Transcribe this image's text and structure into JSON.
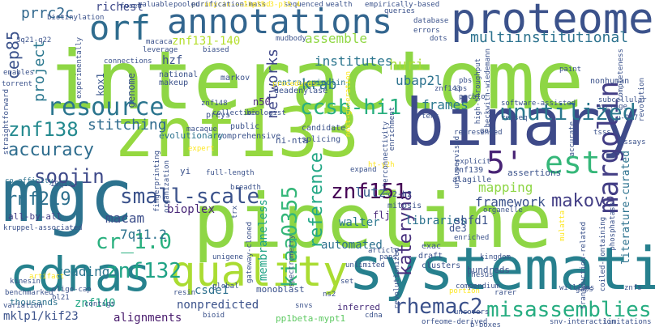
{
  "words": [
    {
      "text": "interactome",
      "color": "#8ed645"
    },
    {
      "text": "pipeline",
      "color": "#8ed645"
    },
    {
      "text": "znf133",
      "color": "#95d840"
    },
    {
      "text": "binary",
      "color": "#3e4a89"
    },
    {
      "text": "mgc",
      "color": "#2c728e"
    },
    {
      "text": "systematic",
      "color": "#27808e"
    },
    {
      "text": "cdnas",
      "color": "#26828e"
    },
    {
      "text": "proteome",
      "color": "#3b528b"
    },
    {
      "text": "annotations",
      "color": "#32658e"
    },
    {
      "text": "quality",
      "color": "#aadc32"
    },
    {
      "text": "resource",
      "color": "#2b758e"
    },
    {
      "text": "orf",
      "color": "#2f6c8e"
    },
    {
      "text": "5'",
      "color": "#482475"
    },
    {
      "text": "est",
      "color": "#35b779"
    },
    {
      "text": "margolin",
      "color": "#433e85"
    },
    {
      "text": "small-scale",
      "color": "#3b528b"
    },
    {
      "text": "unutilized",
      "color": "#2a788e"
    },
    {
      "text": "accuracy",
      "color": "#2e6d8e"
    },
    {
      "text": "znf138",
      "color": "#23898e"
    },
    {
      "text": "ccsb-hi1",
      "color": "#29af7f"
    },
    {
      "text": "znf151",
      "color": "#440154"
    },
    {
      "text": "soojin",
      "color": "#3e4989"
    },
    {
      "text": "rnf219",
      "color": "#2d708e"
    },
    {
      "text": "rhemac2",
      "color": "#3b518b"
    },
    {
      "text": "misassemblies",
      "color": "#27ad81"
    },
    {
      "text": "cr_1.0",
      "color": "#2ab07f"
    },
    {
      "text": "znf132",
      "color": "#20a386"
    },
    {
      "text": "kiaa0355",
      "color": "#35b779"
    },
    {
      "text": "reference",
      "color": "#22a785"
    },
    {
      "text": "kateryna",
      "color": "#472f7d"
    },
    {
      "text": "makova",
      "color": "#433e85"
    },
    {
      "text": "multiinstitutional",
      "color": "#2c728e"
    },
    {
      "text": "project",
      "color": "#2a778e"
    },
    {
      "text": "cep85",
      "color": "#3b528b"
    },
    {
      "text": "prrc2c",
      "color": "#31688e"
    },
    {
      "text": "krab",
      "color": "#2c738e"
    },
    {
      "text": "huri",
      "color": "#a5db36"
    },
    {
      "text": "ubap2l",
      "color": "#2c728e"
    },
    {
      "text": "networks",
      "color": "#3f4788"
    },
    {
      "text": "stitching",
      "color": "#2f6b8e"
    },
    {
      "text": "frames",
      "color": "#2a788e"
    },
    {
      "text": "assemble",
      "color": "#90d743"
    },
    {
      "text": "institutes",
      "color": "#2b758e"
    },
    {
      "text": "lutz",
      "color": "#365c8d"
    },
    {
      "text": "framework",
      "color": "#3b528b"
    },
    {
      "text": "mapping",
      "color": "#8ed645"
    },
    {
      "text": "macam",
      "color": "#3d4e8a"
    },
    {
      "text": "7q11.2",
      "color": "#2c728e"
    },
    {
      "text": "bioplex",
      "color": "#482677"
    },
    {
      "text": "reading",
      "color": "#2b758e"
    },
    {
      "text": "alignments",
      "color": "#481a6c"
    },
    {
      "text": "nonpredicted",
      "color": "#3b528b"
    },
    {
      "text": "csde1",
      "color": "#2d708e"
    },
    {
      "text": "walter",
      "color": "#2a778e"
    },
    {
      "text": "libraries",
      "color": "#2c728e"
    },
    {
      "text": "shfd1",
      "color": "#3b528b"
    },
    {
      "text": "automated",
      "color": "#2d708e"
    },
    {
      "text": "membraneless",
      "color": "#20a386"
    },
    {
      "text": "mklp1/kif23",
      "color": "#3b528b"
    },
    {
      "text": "znf140",
      "color": "#22a785"
    },
    {
      "text": "znf131-140",
      "color": "#b5de2b"
    },
    {
      "text": "richest",
      "color": "#3e4989"
    },
    {
      "text": "hzf",
      "color": "#3b528b"
    },
    {
      "text": "kox1",
      "color": "#39568c"
    },
    {
      "text": "genome",
      "color": "#3b528b"
    },
    {
      "text": "n50",
      "color": "#482878"
    },
    {
      "text": "flj",
      "color": "#482878"
    },
    {
      "text": "de3",
      "color": "#3b528b"
    },
    {
      "text": "ni-nta",
      "color": "#3b528b"
    },
    {
      "text": "evolutionary",
      "color": "#2c728e"
    },
    {
      "text": "monoblast",
      "color": "#3b528b"
    },
    {
      "text": "pp1beta-mypt1",
      "color": "#5ec962"
    },
    {
      "text": "inferred",
      "color": "#472c7a"
    },
    {
      "text": "literature-curated",
      "color": "#2c728e"
    },
    {
      "text": "all-by-all",
      "color": "#433e85"
    },
    {
      "text": "centralspindlin",
      "color": "#2c728e"
    },
    {
      "text": "thousands",
      "color": "#2c728e"
    },
    {
      "text": "hundreds",
      "color": "#3b528b"
    },
    {
      "text": "assertions",
      "color": "#3b528b"
    },
    {
      "text": "alagille",
      "color": "#3b528b"
    },
    {
      "text": "znf139",
      "color": "#3b528b"
    },
    {
      "text": "institutes",
      "color": "#2c728e"
    },
    {
      "text": "public",
      "color": "#3b528b"
    },
    {
      "text": "comprehensive",
      "color": "#3b528b"
    },
    {
      "text": "candidate",
      "color": "#3b528b"
    },
    {
      "text": "splicing",
      "color": "#3b528b"
    },
    {
      "text": "mitosis",
      "color": "#3b528b"
    },
    {
      "text": "c2-h2",
      "color": "#3b528b"
    },
    {
      "text": "exac",
      "color": "#3b528b"
    },
    {
      "text": "draft",
      "color": "#3b528b"
    },
    {
      "text": "clusters",
      "color": "#3b528b"
    },
    {
      "text": "nonhuman",
      "color": "#3b528b"
    },
    {
      "text": "markov",
      "color": "#3b528b"
    },
    {
      "text": "national",
      "color": "#3b528b"
    },
    {
      "text": "makeup",
      "color": "#3b528b"
    },
    {
      "text": "deadenylase",
      "color": "#3b528b"
    },
    {
      "text": "procedures",
      "color": "#fde725"
    },
    {
      "text": "preys",
      "color": "#3b528b"
    },
    {
      "text": "expert",
      "color": "#fde725"
    },
    {
      "text": "macaque",
      "color": "#3b528b"
    },
    {
      "text": "breadth",
      "color": "#3b528b"
    },
    {
      "text": "yi",
      "color": "#3b528b"
    },
    {
      "text": "19q13",
      "color": "#3b528b"
    },
    {
      "text": "co-affinity",
      "color": "#2c728e"
    },
    {
      "text": "kruppel-associated",
      "color": "#3b528b"
    },
    {
      "text": "benchmarked",
      "color": "#3b528b"
    },
    {
      "text": "oligo-cap",
      "color": "#3b528b"
    },
    {
      "text": "bl21",
      "color": "#3b528b"
    },
    {
      "text": "contigs",
      "color": "#3b528b"
    },
    {
      "text": "resin",
      "color": "#3b528b"
    },
    {
      "text": "variation",
      "color": "#3b528b"
    },
    {
      "text": "snvs",
      "color": "#3b528b"
    },
    {
      "text": "ns2",
      "color": "#3b528b"
    },
    {
      "text": "cdna",
      "color": "#3b528b"
    },
    {
      "text": "orfeome-derived",
      "color": "#3b528b"
    },
    {
      "text": "snv-interaction",
      "color": "#3b528b"
    },
    {
      "text": "limitations",
      "color": "#3b528b"
    },
    {
      "text": "rarer",
      "color": "#3b528b"
    },
    {
      "text": "williams",
      "color": "#3b528b"
    },
    {
      "text": "compendium",
      "color": "#3b528b"
    },
    {
      "text": "gaps",
      "color": "#3b528b"
    },
    {
      "text": "znfs",
      "color": "#3b528b"
    },
    {
      "text": "organelle",
      "color": "#3b528b"
    },
    {
      "text": "article",
      "color": "#3b528b"
    },
    {
      "text": "unlimited",
      "color": "#3b528b"
    },
    {
      "text": "enriched",
      "color": "#3b528b"
    },
    {
      "text": "global",
      "color": "#3b528b"
    },
    {
      "text": "unigene",
      "color": "#3b528b"
    },
    {
      "text": "paps",
      "color": "#3b528b"
    },
    {
      "text": "represented",
      "color": "#3b528b"
    },
    {
      "text": "explicit",
      "color": "#3b528b"
    },
    {
      "text": "bioid",
      "color": "#3b528b"
    },
    {
      "text": "full-length",
      "color": "#3b528b"
    },
    {
      "text": "fingerprinting",
      "color": "#3b528b"
    },
    {
      "text": "torrent",
      "color": "#3b528b"
    },
    {
      "text": "enables",
      "color": "#3b528b"
    },
    {
      "text": "3q21-q22",
      "color": "#3b528b"
    },
    {
      "text": "biotinylation",
      "color": "#3b528b"
    },
    {
      "text": "fused",
      "color": "#3b528b"
    },
    {
      "text": "valuable",
      "color": "#3b528b"
    },
    {
      "text": "macaca",
      "color": "#3b528b"
    },
    {
      "text": "leverage",
      "color": "#3b528b"
    },
    {
      "text": "connections",
      "color": "#3b528b"
    },
    {
      "text": "sequenced",
      "color": "#3b528b"
    },
    {
      "text": "wealth",
      "color": "#3b528b"
    },
    {
      "text": "empirically-based",
      "color": "#3b528b"
    },
    {
      "text": "queries",
      "color": "#3b528b"
    },
    {
      "text": "database",
      "color": "#3b528b"
    },
    {
      "text": "errors",
      "color": "#3b528b"
    },
    {
      "text": "dots",
      "color": "#3b528b"
    },
    {
      "text": "biased",
      "color": "#3b528b"
    },
    {
      "text": "paint",
      "color": "#3b528b"
    },
    {
      "text": "subcellular",
      "color": "#3b528b"
    },
    {
      "text": "average",
      "color": "#3b528b"
    },
    {
      "text": "revolution",
      "color": "#3b528b"
    },
    {
      "text": "refseq",
      "color": "#3b528b"
    },
    {
      "text": "goal",
      "color": "#3b528b"
    },
    {
      "text": "u-937",
      "color": "#3b528b"
    },
    {
      "text": "tsss",
      "color": "#3b528b"
    },
    {
      "text": "accurate",
      "color": "#3b528b"
    },
    {
      "text": "assays",
      "color": "#3b528b"
    },
    {
      "text": "phosphatase",
      "color": "#3b528b"
    },
    {
      "text": "enrichment",
      "color": "#3b528b"
    },
    {
      "text": "expand",
      "color": "#3b528b"
    },
    {
      "text": "ht-y2h",
      "color": "#fde725"
    },
    {
      "text": "rhesus",
      "color": "#3b528b"
    },
    {
      "text": "uncovers",
      "color": "#3b528b"
    },
    {
      "text": "set",
      "color": "#3b528b"
    },
    {
      "text": "trx",
      "color": "#3b528b"
    },
    {
      "text": "artifact",
      "color": "#fde725"
    },
    {
      "text": "kinesin",
      "color": "#3b528b"
    },
    {
      "text": "straightforward",
      "color": "#3b528b"
    },
    {
      "text": "experimentally",
      "color": "#3b528b"
    },
    {
      "text": "collection",
      "color": "#3b528b"
    },
    {
      "text": "biologist",
      "color": "#3b528b"
    },
    {
      "text": "tens",
      "color": "#3b528b"
    },
    {
      "text": "software-assisted",
      "color": "#3b528b"
    },
    {
      "text": "beckwith-wiedemann",
      "color": "#3b528b"
    },
    {
      "text": "high-throughput",
      "color": "#3b528b"
    },
    {
      "text": "completeness",
      "color": "#3b528b"
    },
    {
      "text": "sps",
      "color": "#3b528b"
    },
    {
      "text": "pbs",
      "color": "#3b528b"
    },
    {
      "text": "znf143",
      "color": "#3b528b"
    },
    {
      "text": "mudbody",
      "color": "#3b528b"
    },
    {
      "text": "pacbio",
      "color": "#3b528b"
    },
    {
      "text": "spectrometry",
      "color": "#3b528b"
    },
    {
      "text": "interconnectivity",
      "color": "#3b528b"
    },
    {
      "text": "gateway-cloned",
      "color": "#3b528b"
    },
    {
      "text": "transduction-related",
      "color": "#3b528b"
    },
    {
      "text": "kingdom",
      "color": "#3b528b"
    },
    {
      "text": "revolutionized",
      "color": "#3b528b"
    },
    {
      "text": "unsupervised",
      "color": "#3b528b"
    },
    {
      "text": "mulatta",
      "color": "#fde725"
    },
    {
      "text": "coiled-containing",
      "color": "#3b528b"
    },
    {
      "text": "puromycin-selected",
      "color": "#fde725"
    },
    {
      "text": "pooled",
      "color": "#3b528b"
    },
    {
      "text": "purification-mass",
      "color": "#3b528b"
    },
    {
      "text": "11p15.3-p15.4",
      "color": "#fde725"
    },
    {
      "text": "next-generation",
      "color": "#fde725"
    },
    {
      "text": "organization",
      "color": "#3b528b"
    },
    {
      "text": "znf148",
      "color": "#3b528b"
    },
    {
      "text": "b-boxes",
      "color": "#3b528b"
    },
    {
      "text": "portion",
      "color": "#fde725"
    },
    {
      "text": "parasite",
      "color": "#3b528b"
    }
  ]
}
